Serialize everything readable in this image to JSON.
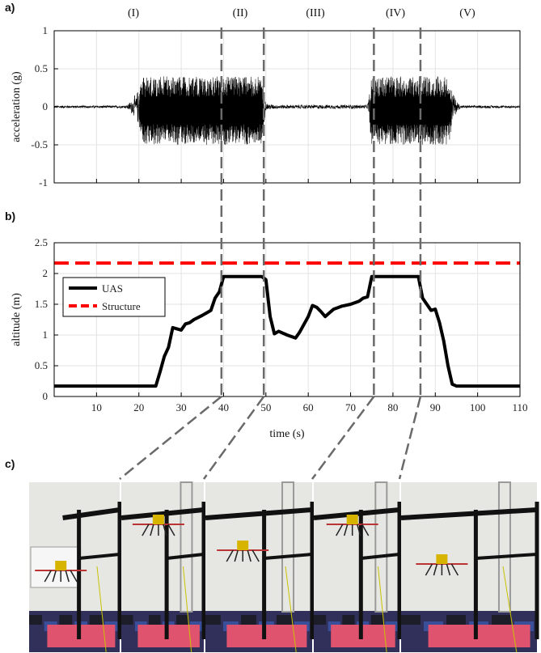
{
  "panel_labels": [
    "a)",
    "b)",
    "c)"
  ],
  "phases": [
    "(I)",
    "(II)",
    "(III)",
    "(IV)",
    "(V)"
  ],
  "chart_data": [
    {
      "type": "line",
      "panel": "a)",
      "xlabel": "",
      "ylabel": "acceleration (g)",
      "xlim": [
        0,
        110
      ],
      "ylim": [
        -1,
        1
      ],
      "yticks": [
        -1,
        -0.5,
        0,
        0.5,
        1
      ],
      "yticklabels": [
        "-1",
        "-0.5",
        "0",
        "0.5",
        "1"
      ],
      "grid": true,
      "series": [
        {
          "color": "#000000",
          "envelope": [
            {
              "t": 0,
              "amp": 0.02
            },
            {
              "t": 17,
              "amp": 0.02
            },
            {
              "t": 18,
              "amp": 0.08
            },
            {
              "t": 19.5,
              "amp": 0.2
            },
            {
              "t": 21,
              "amp": 0.45
            },
            {
              "t": 35,
              "amp": 0.45
            },
            {
              "t": 40,
              "amp": 0.45
            },
            {
              "t": 49,
              "amp": 0.45
            },
            {
              "t": 50,
              "amp": 0.06
            },
            {
              "t": 52,
              "amp": 0.03
            },
            {
              "t": 74,
              "amp": 0.03
            },
            {
              "t": 75,
              "amp": 0.45
            },
            {
              "t": 86,
              "amp": 0.45
            },
            {
              "t": 93,
              "amp": 0.45
            },
            {
              "t": 95,
              "amp": 0.1
            },
            {
              "t": 96,
              "amp": 0.02
            },
            {
              "t": 110,
              "amp": 0.02
            }
          ]
        }
      ]
    },
    {
      "type": "line",
      "panel": "b)",
      "xlabel": "time (s)",
      "ylabel": "altitude (m)",
      "xlim": [
        0,
        110
      ],
      "ylim": [
        0,
        2.5
      ],
      "xticks": [
        10,
        20,
        30,
        40,
        50,
        60,
        70,
        80,
        90,
        100,
        110
      ],
      "yticks": [
        0,
        0.5,
        1,
        1.5,
        2,
        2.5
      ],
      "yticklabels": [
        "0",
        "0.5",
        "1",
        "1.5",
        "2",
        "2.5"
      ],
      "grid": true,
      "legend": "top-left",
      "series": [
        {
          "name": "UAS",
          "color": "#000000",
          "style": "solid",
          "x": [
            0,
            24,
            25,
            26,
            27,
            28,
            29,
            30,
            31,
            32,
            33,
            35,
            37,
            38,
            39,
            40,
            41,
            43,
            45,
            47,
            49,
            50,
            51,
            52,
            53,
            55,
            57,
            58,
            60,
            61,
            62,
            63,
            64,
            65,
            66,
            68,
            70,
            72,
            73,
            74,
            75,
            76,
            78,
            80,
            82,
            84,
            85,
            86,
            87,
            88,
            89,
            90,
            91,
            92,
            93,
            94,
            95,
            100,
            110
          ],
          "y": [
            0.17,
            0.17,
            0.4,
            0.65,
            0.8,
            1.12,
            1.1,
            1.08,
            1.18,
            1.2,
            1.25,
            1.32,
            1.4,
            1.6,
            1.7,
            1.95,
            1.95,
            1.95,
            1.95,
            1.95,
            1.95,
            1.9,
            1.3,
            1.02,
            1.06,
            1.0,
            0.95,
            1.05,
            1.3,
            1.48,
            1.45,
            1.38,
            1.3,
            1.36,
            1.42,
            1.47,
            1.5,
            1.55,
            1.6,
            1.62,
            1.95,
            1.95,
            1.95,
            1.95,
            1.95,
            1.95,
            1.95,
            1.95,
            1.6,
            1.5,
            1.4,
            1.42,
            1.2,
            0.9,
            0.5,
            0.2,
            0.17,
            0.17,
            0.17
          ]
        },
        {
          "name": "Structure",
          "color": "#ff0000",
          "style": "dashed",
          "x": [
            0,
            110
          ],
          "y": [
            2.17,
            2.17
          ]
        }
      ]
    }
  ],
  "phase_boundaries_s": [
    39.5,
    49.5,
    75.5,
    86.5
  ],
  "photos": [
    {
      "caption": ""
    },
    {
      "caption": ""
    },
    {
      "caption": ""
    },
    {
      "caption": ""
    },
    {
      "caption": ""
    }
  ]
}
